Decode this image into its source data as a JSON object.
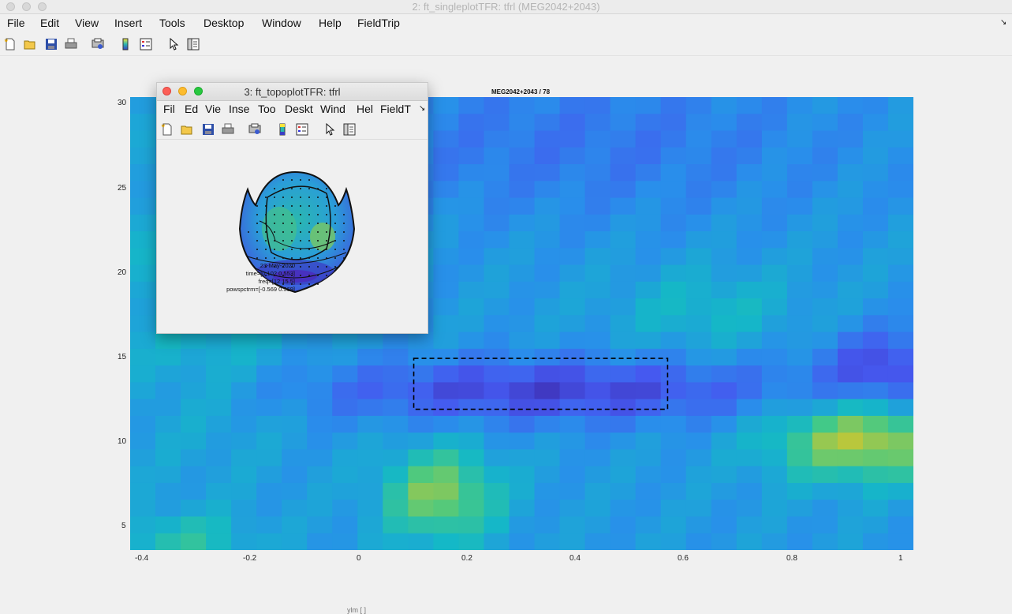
{
  "main_window": {
    "title": "2: ft_singleplotTFR: tfrl (MEG2042+2043)",
    "menu": [
      "File",
      "Edit",
      "View",
      "Insert",
      "Tools",
      "Desktop",
      "Window",
      "Help",
      "FieldTrip"
    ],
    "toolbar_icons": [
      "new-figure-icon",
      "open-file-icon",
      "save-icon",
      "print-icon",
      "print-preview-icon",
      "colorbar-icon",
      "legend-icon",
      "pointer-icon",
      "property-editor-icon"
    ]
  },
  "plot": {
    "title": "MEG2042+2043 / 78",
    "xlabel_partial": "ylm [ ]",
    "selection_box": {
      "time_from": 0.1,
      "time_to": 0.57,
      "freq_from": 12,
      "freq_to": 15
    }
  },
  "chart_data": {
    "type": "heatmap",
    "title": "MEG2042+2043 / 78",
    "x_ticks": [
      "-0.4",
      "-0.2",
      "0",
      "0.2",
      "0.4",
      "0.6",
      "0.8",
      "1"
    ],
    "y_ticks": [
      "30",
      "25",
      "20",
      "15",
      "10",
      "5"
    ],
    "xlim": [
      -0.425,
      1.025
    ],
    "ylim": [
      3.7,
      30.4
    ],
    "colormap": "parula"
  },
  "topo_window": {
    "title": "3: ft_topoplotTFR: tfrl",
    "menu": [
      "Fil",
      "Ed",
      "Vie",
      "Inse",
      "Too",
      "Deskt",
      "Wind",
      "Hel",
      "FieldT"
    ],
    "annotation": {
      "date": "23-May-2020",
      "time": "time=[0.102 0.553]",
      "freq": "freq=[12 15.5]",
      "pow": "powspctrm=[-0.569 0.569]"
    }
  }
}
